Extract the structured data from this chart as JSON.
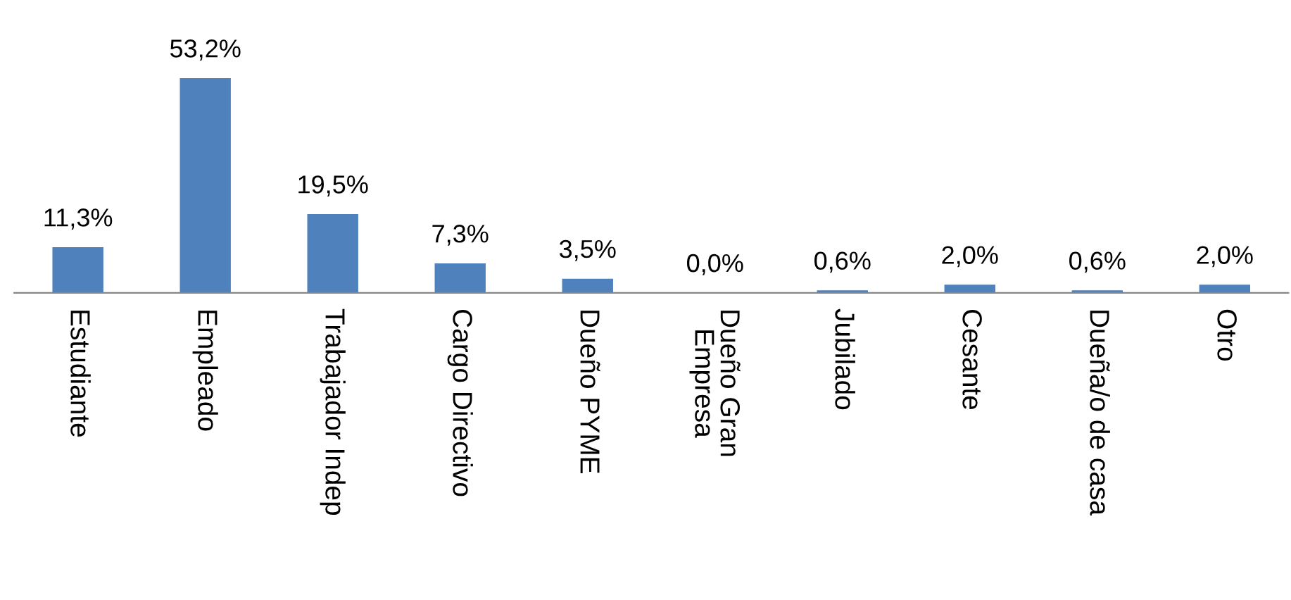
{
  "chart_data": {
    "type": "bar",
    "categories": [
      "Estudiante",
      "Empleado",
      "Trabajador Indep",
      "Cargo Directivo",
      "Dueño PYME",
      "Dueño Gran Empresa",
      "Jubilado",
      "Cesante",
      "Dueña/o de casa",
      "Otro"
    ],
    "values": [
      11.3,
      53.2,
      19.5,
      7.3,
      3.5,
      0.0,
      0.6,
      2.0,
      0.6,
      2.0
    ],
    "value_labels": [
      "11,3%",
      "53,2%",
      "19,5%",
      "7,3%",
      "3,5%",
      "0,0%",
      "0,6%",
      "2,0%",
      "0,6%",
      "2,0%"
    ],
    "color": "#4f81bd",
    "grid": false,
    "legend": false
  }
}
